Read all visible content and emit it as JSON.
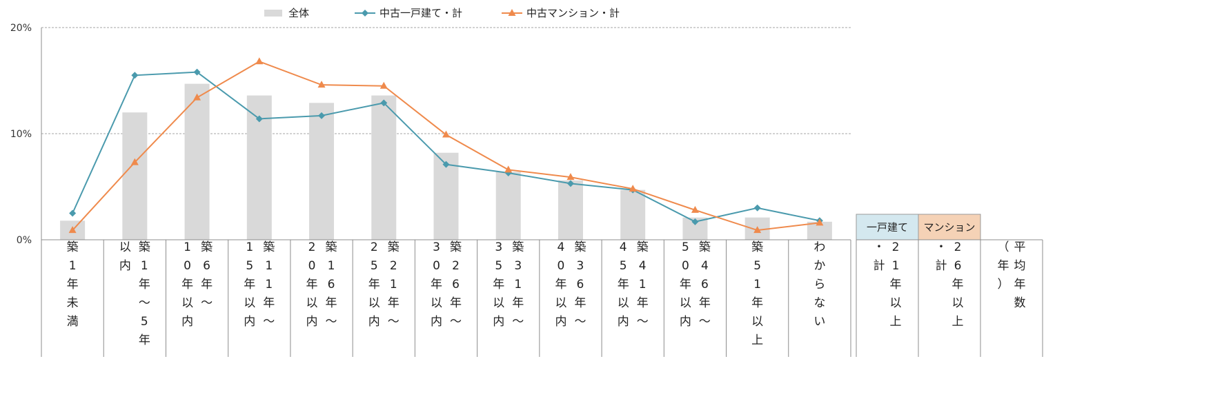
{
  "chart_data": {
    "type": "bar",
    "ylim": [
      0,
      20
    ],
    "y_ticks": [
      "0%",
      "10%",
      "20%"
    ],
    "grid": true,
    "legend_position": "top",
    "legend": [
      {
        "name": "全体",
        "kind": "bar",
        "color": "#d9d9d9"
      },
      {
        "name": "中古一戸建て・計",
        "kind": "line",
        "marker": "diamond",
        "color": "#4a9aad"
      },
      {
        "name": "中古マンション・計",
        "kind": "line",
        "marker": "triangle",
        "color": "#ef8a4c"
      }
    ],
    "categories": [
      {
        "cols": [
          "築",
          "1",
          "年",
          "未",
          "満"
        ]
      },
      {
        "cols": [
          "以",
          "内"
        ],
        "cols2": [
          "築",
          "1",
          "年",
          "〜",
          "5",
          "年"
        ]
      },
      {
        "cols": [
          "1",
          "0",
          "年",
          "以",
          "内"
        ],
        "cols2": [
          "築",
          "6",
          "年",
          "〜"
        ]
      },
      {
        "cols": [
          "1",
          "5",
          "年",
          "以",
          "内"
        ],
        "cols2": [
          "築",
          "1",
          "1",
          "年",
          "〜"
        ]
      },
      {
        "cols": [
          "2",
          "0",
          "年",
          "以",
          "内"
        ],
        "cols2": [
          "築",
          "1",
          "6",
          "年",
          "〜"
        ]
      },
      {
        "cols": [
          "2",
          "5",
          "年",
          "以",
          "内"
        ],
        "cols2": [
          "築",
          "2",
          "1",
          "年",
          "〜"
        ]
      },
      {
        "cols": [
          "3",
          "0",
          "年",
          "以",
          "内"
        ],
        "cols2": [
          "築",
          "2",
          "6",
          "年",
          "〜"
        ]
      },
      {
        "cols": [
          "3",
          "5",
          "年",
          "以",
          "内"
        ],
        "cols2": [
          "築",
          "3",
          "1",
          "年",
          "〜"
        ]
      },
      {
        "cols": [
          "4",
          "0",
          "年",
          "以",
          "内"
        ],
        "cols2": [
          "築",
          "3",
          "6",
          "年",
          "〜"
        ]
      },
      {
        "cols": [
          "4",
          "5",
          "年",
          "以",
          "内"
        ],
        "cols2": [
          "築",
          "4",
          "1",
          "年",
          "〜"
        ]
      },
      {
        "cols": [
          "5",
          "0",
          "年",
          "以",
          "内"
        ],
        "cols2": [
          "築",
          "4",
          "6",
          "年",
          "〜"
        ]
      },
      {
        "cols": [
          "築",
          "5",
          "1",
          "年",
          "以",
          "上"
        ]
      },
      {
        "cols": [
          "わ",
          "か",
          "ら",
          "な",
          "い"
        ]
      }
    ],
    "series": [
      {
        "name": "全体",
        "type": "bar",
        "values": [
          1.8,
          12.0,
          14.7,
          13.6,
          12.9,
          13.6,
          8.2,
          6.4,
          5.6,
          4.7,
          2.1,
          2.1,
          1.7
        ]
      },
      {
        "name": "中古一戸建て・計",
        "type": "line",
        "values": [
          2.5,
          15.5,
          15.8,
          11.4,
          11.7,
          12.9,
          7.1,
          6.3,
          5.3,
          4.7,
          1.7,
          3.0,
          1.8
        ]
      },
      {
        "name": "中古マンション・計",
        "type": "line",
        "values": [
          0.9,
          7.3,
          13.4,
          16.8,
          14.6,
          14.5,
          9.9,
          6.6,
          5.9,
          4.8,
          2.8,
          0.9,
          1.6
        ]
      }
    ]
  },
  "side_panel": {
    "headers": [
      {
        "label": "一戸建て",
        "color": "#d4e8ef"
      },
      {
        "label": "マンション",
        "color": "#f5d2b6"
      }
    ],
    "columns": [
      {
        "cols": [
          "・",
          "計"
        ],
        "cols2": [
          "2",
          "1",
          "年",
          "以",
          "上"
        ]
      },
      {
        "cols": [
          "・",
          "計"
        ],
        "cols2": [
          "2",
          "6",
          "年",
          "以",
          "上"
        ]
      },
      {
        "cols": [
          "（",
          "年",
          "）"
        ],
        "cols2": [
          "平",
          "均",
          "年",
          "数"
        ]
      }
    ]
  },
  "colors": {
    "grid": "#a6a6a6",
    "axis": "#8c8c8c",
    "border": "#9a9a9a"
  }
}
